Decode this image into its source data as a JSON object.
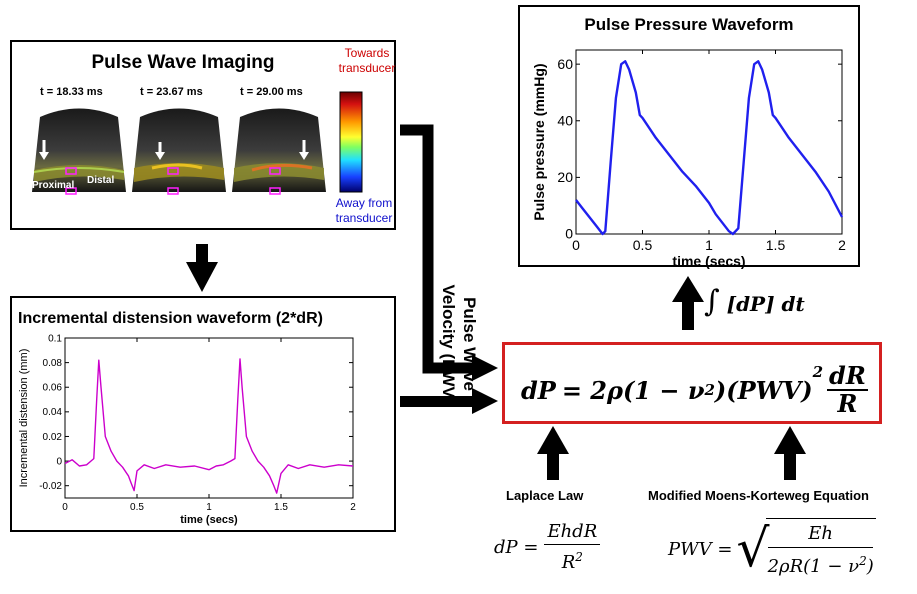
{
  "pwi": {
    "title": "Pulse Wave Imaging",
    "frames": [
      {
        "time": "t = 18.33 ms",
        "label_left": "Proximal",
        "label_right": "Distal"
      },
      {
        "time": "t = 23.67 ms"
      },
      {
        "time": "t = 29.00 ms"
      }
    ],
    "colorbar": {
      "top": "Towards transducer",
      "bottom": "Away from transducer",
      "top_color": "#cc0000",
      "bottom_color": "#1010cc"
    }
  },
  "distension": {
    "title": "Incremental distension waveform (2*dR)",
    "chart_data": {
      "type": "line",
      "xlabel": "time (secs)",
      "ylabel": "Incremental distension (mm)",
      "xlim": [
        0,
        2
      ],
      "ylim": [
        -0.03,
        0.1
      ],
      "xticks": [
        0,
        0.5,
        1,
        1.5,
        2
      ],
      "yticks": [
        -0.02,
        0,
        0.02,
        0.04,
        0.06,
        0.08,
        0.1
      ],
      "ytick_labels": [
        "-0.02",
        "0",
        "0.02",
        "0.04",
        "0.06",
        "0.08",
        "0.1"
      ],
      "color": "#cc00cc",
      "series": [
        {
          "x": [
            0,
            0.05,
            0.1,
            0.15,
            0.18,
            0.2,
            0.22,
            0.235,
            0.25,
            0.28,
            0.32,
            0.36,
            0.4,
            0.44,
            0.46,
            0.48,
            0.5,
            0.55,
            0.62,
            0.7,
            0.8,
            0.9,
            1.0,
            1.05,
            1.1,
            1.15,
            1.18,
            1.2,
            1.215,
            1.23,
            1.26,
            1.3,
            1.34,
            1.38,
            1.42,
            1.45,
            1.47,
            1.5,
            1.55,
            1.62,
            1.7,
            1.8,
            1.9,
            2.0
          ],
          "y": [
            -0.002,
            0.001,
            -0.004,
            -0.003,
            0.0,
            0.002,
            0.05,
            0.082,
            0.06,
            0.02,
            0.008,
            0.0,
            -0.005,
            -0.012,
            -0.018,
            -0.024,
            -0.008,
            -0.003,
            -0.006,
            -0.003,
            -0.005,
            -0.004,
            -0.007,
            -0.004,
            -0.003,
            0.0,
            0.002,
            0.05,
            0.083,
            0.06,
            0.02,
            0.008,
            0.0,
            -0.005,
            -0.012,
            -0.02,
            -0.026,
            -0.01,
            -0.003,
            -0.006,
            -0.003,
            -0.005,
            -0.003,
            -0.004
          ]
        }
      ]
    }
  },
  "pressure": {
    "title": "Pulse Pressure Waveform",
    "chart_data": {
      "type": "line",
      "xlabel": "time (secs)",
      "ylabel": "Pulse pressure (mmHg)",
      "xlim": [
        0,
        2
      ],
      "ylim": [
        0,
        65
      ],
      "xticks": [
        0,
        0.5,
        1,
        1.5,
        2
      ],
      "xtick_labels": [
        "0",
        "0.5",
        "1",
        "1.5",
        "2"
      ],
      "yticks": [
        0,
        20,
        40,
        60
      ],
      "color": "#2020ee",
      "series": [
        {
          "x": [
            0,
            0.05,
            0.1,
            0.15,
            0.2,
            0.22,
            0.26,
            0.3,
            0.34,
            0.37,
            0.4,
            0.45,
            0.48,
            0.5,
            0.6,
            0.7,
            0.8,
            0.9,
            1.0,
            1.05,
            1.1,
            1.15,
            1.18,
            1.22,
            1.26,
            1.3,
            1.34,
            1.37,
            1.4,
            1.45,
            1.48,
            1.5,
            1.6,
            1.7,
            1.8,
            1.9,
            2.0
          ],
          "y": [
            12,
            9,
            6,
            3,
            0,
            1,
            25,
            48,
            60,
            61,
            58,
            50,
            42,
            41,
            34,
            28,
            22,
            17,
            11,
            7,
            4,
            1,
            0,
            2,
            25,
            48,
            60,
            61,
            58,
            50,
            42,
            41,
            34,
            28,
            22,
            15,
            6
          ]
        }
      ]
    }
  },
  "arrows": {
    "pwv_label_line1": "Pulse Wave",
    "pwv_label_line2": "Velocity (PWV)"
  },
  "equations": {
    "main_lhs": "dP",
    "main_rhs_prefix": "= 2ρ(1 − ν",
    "main_rhs_mid": ")(PWV)",
    "main_frac_num": "dR",
    "main_frac_den": "R",
    "integral_text": "[dP] dt",
    "integral_symbol": "∫",
    "laplace_label": "Laplace Law",
    "laplace_lhs": "dP =",
    "laplace_num": "EhdR",
    "laplace_den": "R",
    "mk_label": "Modified Moens-Korteweg Equation",
    "mk_lhs": "PWV =",
    "mk_num": "Eh",
    "mk_den": "2ρR(1 − ν",
    "mk_den_end": ")",
    "sup2": "2"
  }
}
